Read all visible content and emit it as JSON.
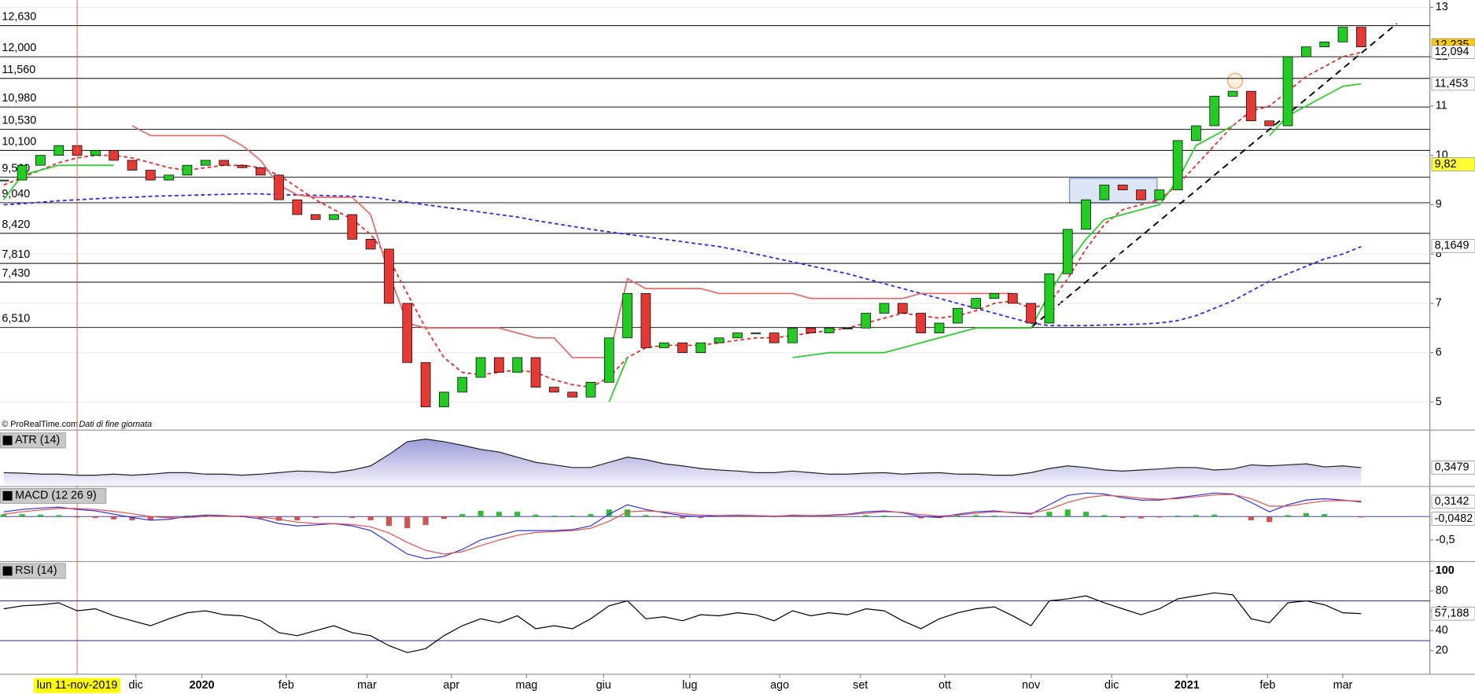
{
  "chart_data": [
    {
      "type": "candlestick",
      "source": "© ProRealTime.com",
      "source_note": "Dati di fine giornata",
      "values": [
        9.5,
        9.8,
        10.0,
        10.2,
        10.0,
        10.1,
        9.9,
        9.7,
        9.5,
        9.6,
        9.8,
        9.9,
        9.8,
        9.75,
        9.6,
        9.1,
        8.8,
        8.7,
        8.8,
        8.3,
        8.1,
        7.0,
        5.8,
        4.9,
        5.2,
        5.5,
        5.9,
        5.6,
        5.9,
        5.3,
        5.2,
        5.1,
        5.4,
        6.3,
        7.2,
        6.1,
        6.2,
        6.0,
        6.2,
        6.3,
        6.4,
        6.4,
        6.2,
        6.5,
        6.4,
        6.5,
        6.5,
        6.8,
        7.0,
        6.8,
        6.4,
        6.6,
        6.9,
        7.1,
        7.2,
        7.0,
        6.6,
        7.6,
        8.5,
        9.1,
        9.4,
        9.3,
        9.1,
        9.3,
        10.3,
        10.6,
        11.2,
        11.3,
        10.7,
        10.6,
        12.0,
        12.2,
        12.3,
        12.6,
        12.2
      ],
      "up_color": "#22cc22",
      "down_color": "#e53935",
      "ylim": [
        4.43,
        13.15
      ],
      "yticks": [
        5,
        6,
        7,
        8,
        9,
        10,
        11,
        12,
        13
      ],
      "grid": true,
      "levels": [
        {
          "value": 12.63,
          "label": "12,630"
        },
        {
          "value": 12.0,
          "label": "12,000"
        },
        {
          "value": 11.56,
          "label": "11,560"
        },
        {
          "value": 10.98,
          "label": "10,980"
        },
        {
          "value": 10.53,
          "label": "10,530"
        },
        {
          "value": 10.1,
          "label": "10,100"
        },
        {
          "value": 9.56,
          "label": "9,560"
        },
        {
          "value": 9.04,
          "label": "9,040"
        },
        {
          "value": 8.42,
          "label": "8,420"
        },
        {
          "value": 7.81,
          "label": "7,810"
        },
        {
          "value": 7.43,
          "label": "7,430"
        },
        {
          "value": 6.51,
          "label": "6,510"
        }
      ],
      "series": [
        {
          "color": "#2a2ae0",
          "style": "dashed",
          "values": [
            9.0,
            9.02,
            9.05,
            9.08,
            9.1,
            9.12,
            9.14,
            9.15,
            9.17,
            9.18,
            9.19,
            9.2,
            9.21,
            9.22,
            9.22,
            9.2,
            9.2,
            9.19,
            9.18,
            9.17,
            9.15,
            9.1,
            9.05,
            9.0,
            8.95,
            8.9,
            8.85,
            8.8,
            8.75,
            8.68,
            8.62,
            8.56,
            8.5,
            8.45,
            8.4,
            8.35,
            8.3,
            8.25,
            8.2,
            8.15,
            8.08,
            8.0,
            7.92,
            7.84,
            7.76,
            7.68,
            7.6,
            7.5,
            7.4,
            7.3,
            7.2,
            7.1,
            7.0,
            6.9,
            6.8,
            6.7,
            6.6,
            6.55,
            6.55,
            6.55,
            6.56,
            6.57,
            6.58,
            6.6,
            6.65,
            6.75,
            6.9,
            7.05,
            7.25,
            7.45,
            7.6,
            7.75,
            7.9,
            8.0,
            8.15
          ]
        },
        {
          "color": "#e03030",
          "style": "dashed",
          "values": [
            9.4,
            9.55,
            9.7,
            9.85,
            9.95,
            10.0,
            10.0,
            9.95,
            9.85,
            9.75,
            9.7,
            9.75,
            9.8,
            9.8,
            9.75,
            9.6,
            9.35,
            9.1,
            8.9,
            8.7,
            8.4,
            7.9,
            7.2,
            6.5,
            5.9,
            5.6,
            5.55,
            5.6,
            5.65,
            5.6,
            5.45,
            5.35,
            5.3,
            5.5,
            5.9,
            6.1,
            6.15,
            6.15,
            6.15,
            6.2,
            6.25,
            6.3,
            6.3,
            6.35,
            6.4,
            6.45,
            6.5,
            6.6,
            6.7,
            6.8,
            6.75,
            6.7,
            6.75,
            6.85,
            7.0,
            7.05,
            6.9,
            7.0,
            7.5,
            8.1,
            8.6,
            8.9,
            9.0,
            9.1,
            9.4,
            9.8,
            10.2,
            10.6,
            10.9,
            11.0,
            11.3,
            11.6,
            11.8,
            12.0,
            12.09
          ]
        },
        {
          "color": "#e07070",
          "style": "solid",
          "values": [
            null,
            null,
            null,
            null,
            null,
            null,
            null,
            10.6,
            10.4,
            10.4,
            10.4,
            10.4,
            10.4,
            10.2,
            9.9,
            9.4,
            9.2,
            9.15,
            9.15,
            9.15,
            8.8,
            7.6,
            6.6,
            6.5,
            6.5,
            6.5,
            6.5,
            6.5,
            6.4,
            6.3,
            6.3,
            5.9,
            5.9,
            5.9,
            7.5,
            7.3,
            7.3,
            7.3,
            7.3,
            7.2,
            7.2,
            7.2,
            7.2,
            7.2,
            7.1,
            7.1,
            7.1,
            7.1,
            7.1,
            7.1,
            7.2,
            7.2,
            7.2,
            7.2,
            7.2,
            7.2,
            null,
            null,
            null,
            null,
            null,
            null,
            null,
            null,
            null,
            null,
            null,
            null,
            11.6,
            null,
            null,
            null,
            null,
            null,
            null
          ]
        },
        {
          "color": "#33cc33",
          "style": "solid",
          "values": [
            9.1,
            9.6,
            9.7,
            9.8,
            9.8,
            9.8,
            9.8,
            null,
            null,
            null,
            null,
            null,
            null,
            null,
            null,
            null,
            null,
            null,
            null,
            null,
            null,
            null,
            null,
            null,
            null,
            null,
            null,
            null,
            null,
            null,
            null,
            null,
            null,
            5.0,
            5.9,
            null,
            null,
            null,
            null,
            null,
            null,
            null,
            null,
            5.9,
            5.95,
            6.0,
            6.0,
            6.0,
            6.0,
            6.1,
            6.2,
            6.3,
            6.4,
            6.5,
            6.5,
            6.5,
            6.5,
            7.2,
            7.8,
            8.3,
            8.7,
            8.8,
            8.9,
            9.0,
            9.5,
            10.2,
            10.4,
            10.6,
            null,
            10.4,
            10.8,
            11.0,
            11.2,
            11.4,
            11.45
          ]
        }
      ],
      "price_labels": [
        {
          "value": 12.235,
          "label": "12,235",
          "color": "#000000",
          "background": "#ffcc00"
        },
        {
          "value": 12.094,
          "label": "12,094",
          "color": "#e03030",
          "background": "#ffffff"
        },
        {
          "value": 11.453,
          "label": "11,453",
          "color": "#33bb33",
          "background": "#ffffff"
        },
        {
          "value": 9.82,
          "label": "9,82",
          "color": "#000000",
          "background": "#ffff33"
        },
        {
          "value": 8.1649,
          "label": "8,1649",
          "color": "#2a2ae0",
          "background": "#ffffff"
        }
      ],
      "cursor": {
        "value": 4,
        "label": "lun 11-nov-2019"
      },
      "xticks": [
        {
          "value": 7.2,
          "label": "dic"
        },
        {
          "value": 10.8,
          "label": "2020"
        },
        {
          "value": 15.4,
          "label": "feb"
        },
        {
          "value": 19.8,
          "label": "mar"
        },
        {
          "value": 24.4,
          "label": "apr"
        },
        {
          "value": 28.5,
          "label": "mag"
        },
        {
          "value": 32.7,
          "label": "giu"
        },
        {
          "value": 37.4,
          "label": "lug"
        },
        {
          "value": 42.3,
          "label": "ago"
        },
        {
          "value": 46.7,
          "label": "set"
        },
        {
          "value": 51.3,
          "label": "ott"
        },
        {
          "value": 56.0,
          "label": "nov"
        },
        {
          "value": 60.4,
          "label": "dic"
        },
        {
          "value": 64.5,
          "label": "2021"
        },
        {
          "value": 68.9,
          "label": "feb"
        },
        {
          "value": 73.0,
          "label": "mar"
        }
      ]
    },
    {
      "type": "area",
      "title": "ATR (14)",
      "color": "#b8b8e0",
      "ylim": [
        0,
        1
      ],
      "values": [
        0.25,
        0.24,
        0.22,
        0.22,
        0.2,
        0.2,
        0.22,
        0.2,
        0.22,
        0.25,
        0.25,
        0.22,
        0.22,
        0.2,
        0.22,
        0.25,
        0.28,
        0.27,
        0.25,
        0.3,
        0.38,
        0.6,
        0.85,
        0.9,
        0.85,
        0.78,
        0.7,
        0.65,
        0.55,
        0.45,
        0.4,
        0.35,
        0.35,
        0.45,
        0.55,
        0.5,
        0.42,
        0.38,
        0.33,
        0.3,
        0.28,
        0.25,
        0.25,
        0.28,
        0.25,
        0.22,
        0.22,
        0.24,
        0.25,
        0.22,
        0.24,
        0.25,
        0.22,
        0.22,
        0.2,
        0.2,
        0.25,
        0.33,
        0.38,
        0.35,
        0.3,
        0.28,
        0.3,
        0.32,
        0.35,
        0.35,
        0.3,
        0.32,
        0.4,
        0.38,
        0.4,
        0.42,
        0.36,
        0.38,
        0.3479
      ],
      "value_labels": [
        {
          "value": 0.3479,
          "label": "0,3479"
        }
      ]
    },
    {
      "type": "macd",
      "title": "MACD (12 26 9)",
      "ylim": [
        -0.94,
        0.6
      ],
      "yticks": [
        {
          "value": -0.5,
          "label": "-0,5"
        }
      ],
      "series": [
        {
          "color": "#3030e0",
          "values": [
            0.1,
            0.15,
            0.18,
            0.2,
            0.15,
            0.12,
            0.05,
            -0.02,
            -0.08,
            -0.06,
            0.0,
            0.03,
            0.02,
            0.0,
            -0.05,
            -0.15,
            -0.2,
            -0.18,
            -0.15,
            -0.2,
            -0.3,
            -0.55,
            -0.8,
            -0.9,
            -0.85,
            -0.7,
            -0.5,
            -0.4,
            -0.3,
            -0.3,
            -0.3,
            -0.28,
            -0.2,
            0.05,
            0.25,
            0.15,
            0.08,
            0.02,
            0.0,
            0.02,
            0.03,
            0.02,
            0.0,
            0.03,
            0.02,
            0.03,
            0.05,
            0.1,
            0.12,
            0.08,
            0.0,
            -0.02,
            0.05,
            0.1,
            0.12,
            0.08,
            0.05,
            0.25,
            0.45,
            0.5,
            0.48,
            0.4,
            0.35,
            0.35,
            0.4,
            0.45,
            0.5,
            0.48,
            0.3,
            0.1,
            0.25,
            0.35,
            0.38,
            0.35,
            0.31
          ]
        },
        {
          "color": "#e05050",
          "values": [
            0.05,
            0.1,
            0.14,
            0.17,
            0.17,
            0.15,
            0.11,
            0.06,
            0.0,
            -0.03,
            -0.02,
            0.0,
            0.01,
            0.01,
            -0.01,
            -0.06,
            -0.12,
            -0.15,
            -0.15,
            -0.17,
            -0.22,
            -0.35,
            -0.55,
            -0.72,
            -0.8,
            -0.75,
            -0.62,
            -0.5,
            -0.4,
            -0.34,
            -0.32,
            -0.3,
            -0.25,
            -0.1,
            0.1,
            0.12,
            0.1,
            0.06,
            0.03,
            0.02,
            0.02,
            0.02,
            0.01,
            0.02,
            0.02,
            0.02,
            0.04,
            0.07,
            0.1,
            0.09,
            0.04,
            0.01,
            0.03,
            0.07,
            0.1,
            0.09,
            0.07,
            0.15,
            0.3,
            0.4,
            0.45,
            0.43,
            0.39,
            0.37,
            0.38,
            0.42,
            0.46,
            0.47,
            0.38,
            0.22,
            0.22,
            0.28,
            0.33,
            0.34,
            0.33
          ]
        }
      ],
      "histogram": [
        0.05,
        0.05,
        0.04,
        0.03,
        -0.02,
        -0.03,
        -0.06,
        -0.08,
        -0.08,
        -0.03,
        0.02,
        0.03,
        0.01,
        -0.01,
        -0.04,
        -0.09,
        -0.08,
        -0.03,
        0.0,
        -0.03,
        -0.08,
        -0.2,
        -0.25,
        -0.18,
        -0.05,
        0.05,
        0.12,
        0.1,
        0.1,
        0.04,
        0.02,
        0.02,
        0.05,
        0.15,
        0.15,
        0.03,
        -0.02,
        -0.04,
        -0.03,
        0.0,
        0.01,
        0.0,
        -0.01,
        0.01,
        0.0,
        0.01,
        0.01,
        0.03,
        0.02,
        -0.01,
        -0.04,
        -0.03,
        0.02,
        0.03,
        0.02,
        -0.01,
        -0.02,
        0.1,
        0.15,
        0.1,
        0.03,
        -0.03,
        -0.04,
        -0.02,
        0.02,
        0.03,
        0.04,
        0.01,
        -0.08,
        -0.12,
        0.03,
        0.07,
        0.05,
        0.01,
        -0.02
      ],
      "up_color": "#33bb33",
      "down_color": "#cc5555",
      "value_labels": [
        {
          "value": 0.3142,
          "label": "0,3142",
          "color": "#3030e0"
        },
        {
          "value": -0.0482,
          "label": "-0,0482",
          "color": "#e05050"
        }
      ]
    },
    {
      "type": "line",
      "title": "RSI (14)",
      "color": "#000000",
      "ylim": [
        0,
        100
      ],
      "yticks": [
        20,
        40,
        60,
        80,
        100
      ],
      "bands": [
        30,
        70
      ],
      "values": [
        62,
        65,
        66,
        68,
        60,
        62,
        55,
        50,
        45,
        52,
        58,
        60,
        56,
        55,
        50,
        38,
        35,
        40,
        45,
        38,
        35,
        25,
        18,
        22,
        35,
        45,
        52,
        48,
        55,
        42,
        45,
        42,
        52,
        65,
        70,
        52,
        54,
        50,
        56,
        55,
        58,
        56,
        50,
        60,
        55,
        58,
        56,
        62,
        60,
        50,
        42,
        52,
        58,
        62,
        64,
        55,
        45,
        70,
        72,
        75,
        68,
        62,
        56,
        62,
        72,
        75,
        78,
        76,
        52,
        48,
        68,
        70,
        66,
        58,
        57.188
      ],
      "value_labels": [
        {
          "value": 57.188,
          "label": "57,188"
        }
      ]
    }
  ]
}
